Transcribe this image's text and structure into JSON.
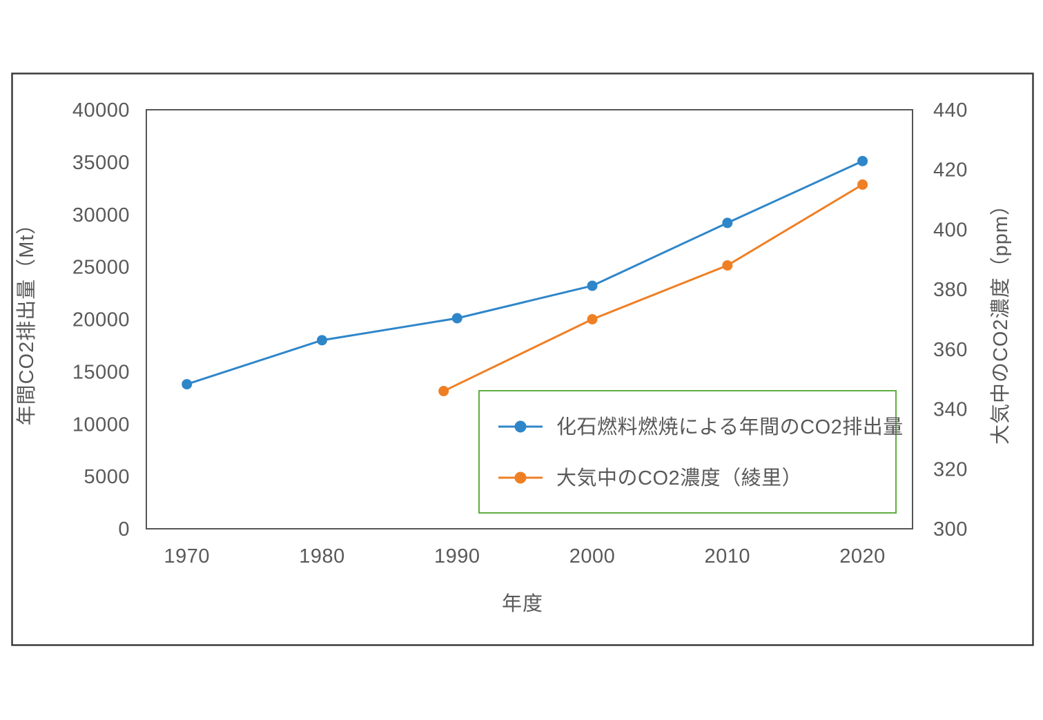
{
  "figure": {
    "background_color": "#ffffff",
    "outer_border_color": "#3a3a3a",
    "plot_frame_color": "#555555",
    "text_color": "#595959"
  },
  "chart_data": {
    "type": "line",
    "title": "",
    "xlabel": "年度",
    "ylabel_left": "年間CO2排出量（Mt）",
    "ylabel_right": "大気中のCO2濃度（ppm）",
    "grid": false,
    "xlim": [
      1967.0,
      2023.7
    ],
    "x_ticks": [
      1970,
      1980,
      1990,
      2000,
      2010,
      2020
    ],
    "ylim_left": [
      0,
      40000
    ],
    "y_ticks_left": [
      0,
      5000,
      10000,
      15000,
      20000,
      25000,
      30000,
      35000,
      40000
    ],
    "ylim_right": [
      300,
      440
    ],
    "y_ticks_right": [
      300,
      320,
      340,
      360,
      380,
      400,
      420,
      440
    ],
    "legend": {
      "position": "inside-bottom-right",
      "border_color": "#5FAD41",
      "background_color": "#ffffff"
    },
    "series": [
      {
        "name": "化石燃料燃焼による年間のCO2排出量",
        "axis": "left",
        "color": "#2E86C9",
        "x": [
          1970,
          1980,
          1990,
          2000,
          2010,
          2020
        ],
        "y": [
          13800,
          18000,
          20100,
          23200,
          29200,
          35100
        ]
      },
      {
        "name": "大気中のCO2濃度（綾里）",
        "axis": "right",
        "color": "#EF7F24",
        "x": [
          1989,
          2000,
          2010,
          2020
        ],
        "y": [
          346,
          370,
          388,
          415
        ]
      }
    ]
  }
}
